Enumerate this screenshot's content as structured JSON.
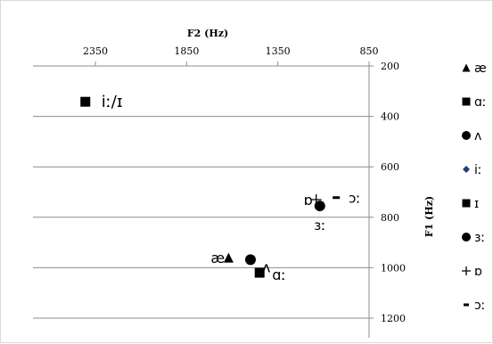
{
  "chart_data": {
    "type": "scatter",
    "xlabel": "F2 (Hz)",
    "ylabel": "F1 (Hz)",
    "x_axis": {
      "position": "top",
      "reversed": true,
      "range": [
        2650,
        850
      ],
      "ticks": [
        2350,
        1850,
        1350,
        850
      ]
    },
    "y_axis": {
      "position": "right",
      "reversed": true,
      "range": [
        200,
        1250
      ],
      "ticks": [
        200,
        400,
        600,
        800,
        1000,
        1200
      ]
    },
    "grid": "horizontal",
    "legend_position": "right",
    "series": [
      {
        "name": "æ",
        "marker": "triangle",
        "color": "#000000",
        "points": [
          {
            "x": 1620,
            "y": 960,
            "label": "æ"
          }
        ]
      },
      {
        "name": "ɑː",
        "marker": "square",
        "color": "#000000",
        "points": [
          {
            "x": 1450,
            "y": 1020,
            "label": "ɑː"
          }
        ]
      },
      {
        "name": "ʌ",
        "marker": "circle",
        "color": "#000000",
        "points": [
          {
            "x": 1500,
            "y": 968,
            "label": "ʌ"
          }
        ]
      },
      {
        "name": "iː",
        "marker": "diamond",
        "color": "#1f3d7a",
        "points": [
          {
            "x": 2405,
            "y": 342,
            "label": ""
          }
        ]
      },
      {
        "name": "ɪ",
        "marker": "square",
        "color": "#000000",
        "points": [
          {
            "x": 2405,
            "y": 342,
            "label": "iː/ɪ"
          }
        ]
      },
      {
        "name": "ɜː",
        "marker": "circle",
        "color": "#000000",
        "points": [
          {
            "x": 1120,
            "y": 755,
            "label": "ɜː"
          }
        ]
      },
      {
        "name": "ɒ",
        "marker": "plus",
        "color": "#000000",
        "points": [
          {
            "x": 1140,
            "y": 730,
            "label": "ɒ"
          }
        ]
      },
      {
        "name": "ɔː",
        "marker": "dash",
        "color": "#000000",
        "points": [
          {
            "x": 1030,
            "y": 722,
            "label": "ɔː"
          }
        ]
      }
    ]
  }
}
